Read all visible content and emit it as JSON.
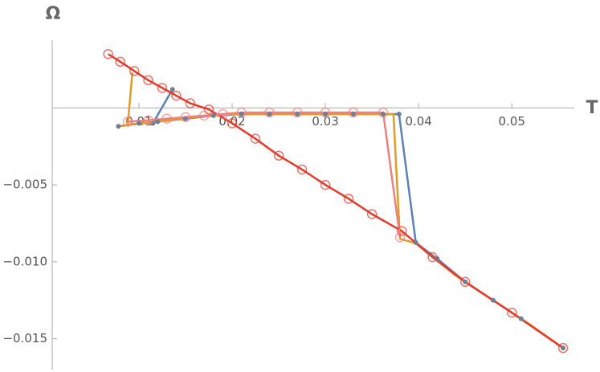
{
  "chart_data": {
    "type": "line",
    "x_label": "T",
    "y_label": "Ω",
    "xlim": [
      0.0007,
      0.0567
    ],
    "ylim": [
      -0.017,
      0.0044
    ],
    "xticks": [
      0.01,
      0.02,
      0.03,
      0.04,
      0.05
    ],
    "yticks": [
      {
        "value": -0.005,
        "label": "−0.005"
      },
      {
        "value": -0.01,
        "label": "−0.010"
      },
      {
        "value": -0.015,
        "label": "−0.015"
      }
    ],
    "series": [
      {
        "color": "#5e81b5",
        "marker": "dot",
        "x": [
          0.0078,
          0.01,
          0.012,
          0.015,
          0.018,
          0.021,
          0.024,
          0.027,
          0.03,
          0.033,
          0.0362,
          0.0379,
          0.0397,
          0.042,
          0.045,
          0.048,
          0.051,
          0.0555,
          null,
          0.0115,
          0.0136
        ],
        "values": [
          -0.0012,
          -0.001,
          -0.0009,
          -0.0007,
          -0.0005,
          -0.0004,
          -0.0004,
          -0.0004,
          -0.0004,
          -0.0004,
          -0.0004,
          -0.0004,
          -0.00875,
          -0.0098,
          -0.0113,
          -0.0125,
          -0.0137,
          -0.0156,
          null,
          -0.001,
          0.0012
        ]
      },
      {
        "color": "#e19c24",
        "marker": "none",
        "x": [
          0.0078,
          0.0088,
          0.0093,
          null,
          0.0088,
          0.012,
          0.016,
          0.02,
          0.024,
          0.028,
          0.032,
          0.0373,
          0.038,
          0.0397,
          0.044,
          0.048,
          0.052,
          0.0555
        ],
        "values": [
          -0.0012,
          -0.0011,
          0.0023,
          null,
          -0.0011,
          -0.0009,
          -0.0006,
          -0.0004,
          -0.0004,
          -0.0004,
          -0.0004,
          -0.0004,
          -0.0085,
          -0.0088,
          -0.0109,
          -0.0125,
          -0.0141,
          -0.0156
        ]
      },
      {
        "color": "#e8392b",
        "marker": "circle",
        "x": [
          0.0067,
          0.008,
          0.0095,
          0.011,
          0.0125,
          0.014,
          0.0155,
          0.0175,
          0.02,
          0.0225,
          0.025,
          0.0275,
          0.03,
          0.0325,
          0.035,
          0.0382,
          0.0415,
          0.045,
          0.05,
          0.0555
        ],
        "values": [
          0.0035,
          0.003,
          0.0024,
          0.0018,
          0.0013,
          0.0008,
          0.0003,
          -0.0001,
          -0.001,
          -0.002,
          -0.0031,
          -0.004,
          -0.005,
          -0.0059,
          -0.0069,
          -0.008,
          -0.0097,
          -0.0113,
          -0.0133,
          -0.0156
        ]
      },
      {
        "color": "#f08080",
        "marker": "circle",
        "x": [
          0.0088,
          0.011,
          0.013,
          0.015,
          0.017,
          0.019,
          0.021,
          0.024,
          0.027,
          0.03,
          0.033,
          0.0362,
          0.038
        ],
        "values": [
          -0.0009,
          -0.0008,
          -0.0007,
          -0.0006,
          -0.0005,
          -0.0004,
          -0.0003,
          -0.0003,
          -0.0003,
          -0.0003,
          -0.0003,
          -0.0003,
          -0.0084
        ]
      }
    ]
  }
}
